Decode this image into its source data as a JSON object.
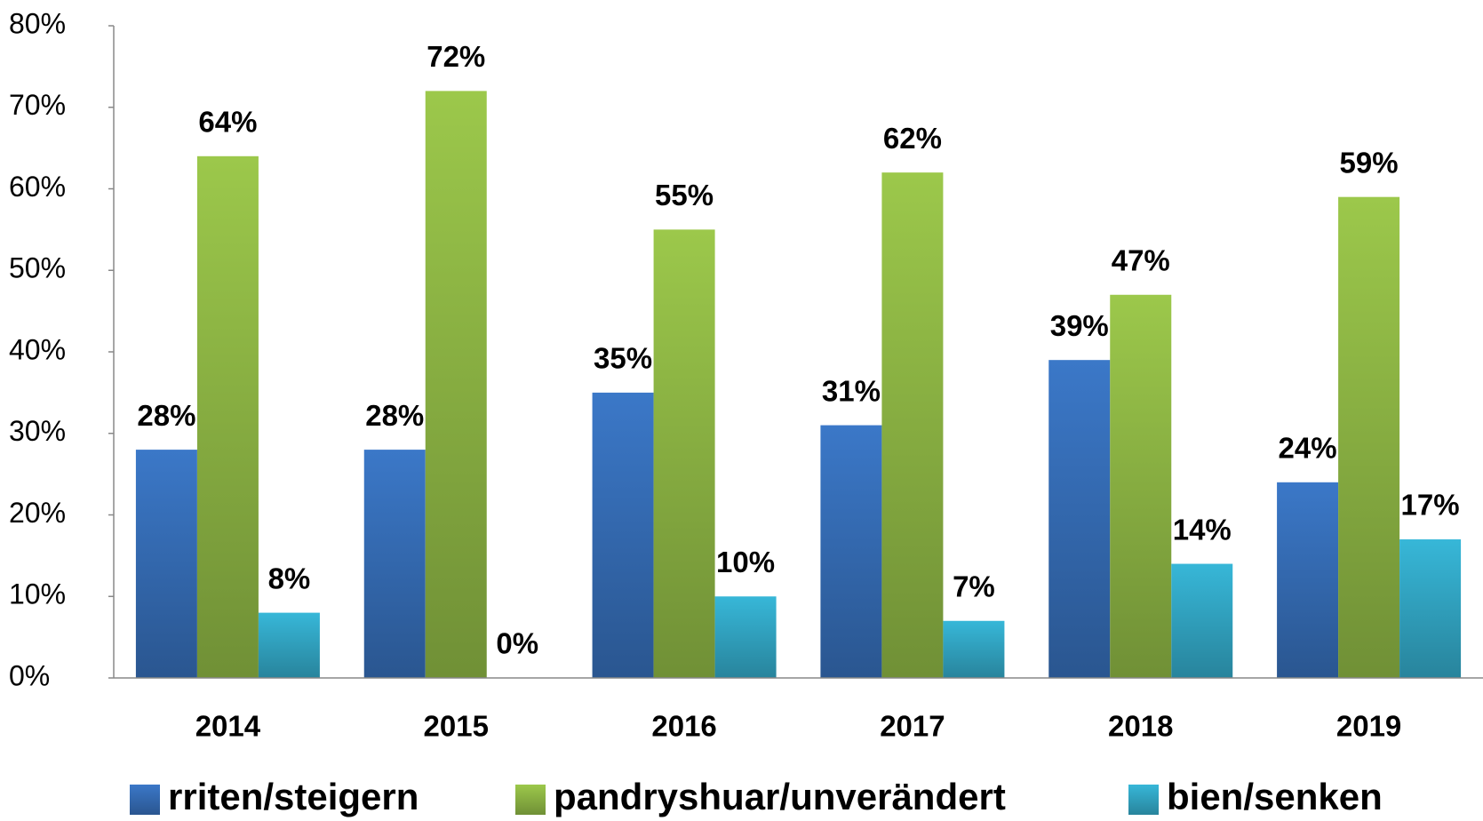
{
  "chart_data": {
    "type": "bar",
    "categories": [
      "2014",
      "2015",
      "2016",
      "2017",
      "2018",
      "2019"
    ],
    "series": [
      {
        "name": "rriten/steigern",
        "color": "#3b78c8",
        "values": [
          28,
          28,
          35,
          31,
          39,
          24
        ],
        "value_labels": [
          "28%",
          "28%",
          "35%",
          "31%",
          "39%",
          "24%"
        ]
      },
      {
        "name": "pandryshuar/unverändert",
        "color": "#9cc84b",
        "values": [
          64,
          72,
          55,
          62,
          47,
          59
        ],
        "value_labels": [
          "64%",
          "72%",
          "55%",
          "62%",
          "47%",
          "59%"
        ]
      },
      {
        "name": "bien/senken",
        "color": "#37b7d8",
        "values": [
          8,
          0,
          10,
          7,
          14,
          17
        ],
        "value_labels": [
          "8%",
          "0%",
          "10%",
          "7%",
          "14%",
          "17%"
        ]
      }
    ],
    "ylim": [
      0,
      80
    ],
    "yticks": [
      {
        "value": 0,
        "label": "0%"
      },
      {
        "value": 10,
        "label": "10%"
      },
      {
        "value": 20,
        "label": "20%"
      },
      {
        "value": 30,
        "label": "30%"
      },
      {
        "value": 40,
        "label": "40%"
      },
      {
        "value": 50,
        "label": "50%"
      },
      {
        "value": 60,
        "label": "60%"
      },
      {
        "value": 70,
        "label": "70%"
      },
      {
        "value": 80,
        "label": "80%"
      }
    ],
    "grid": false,
    "legend": "bottom"
  }
}
